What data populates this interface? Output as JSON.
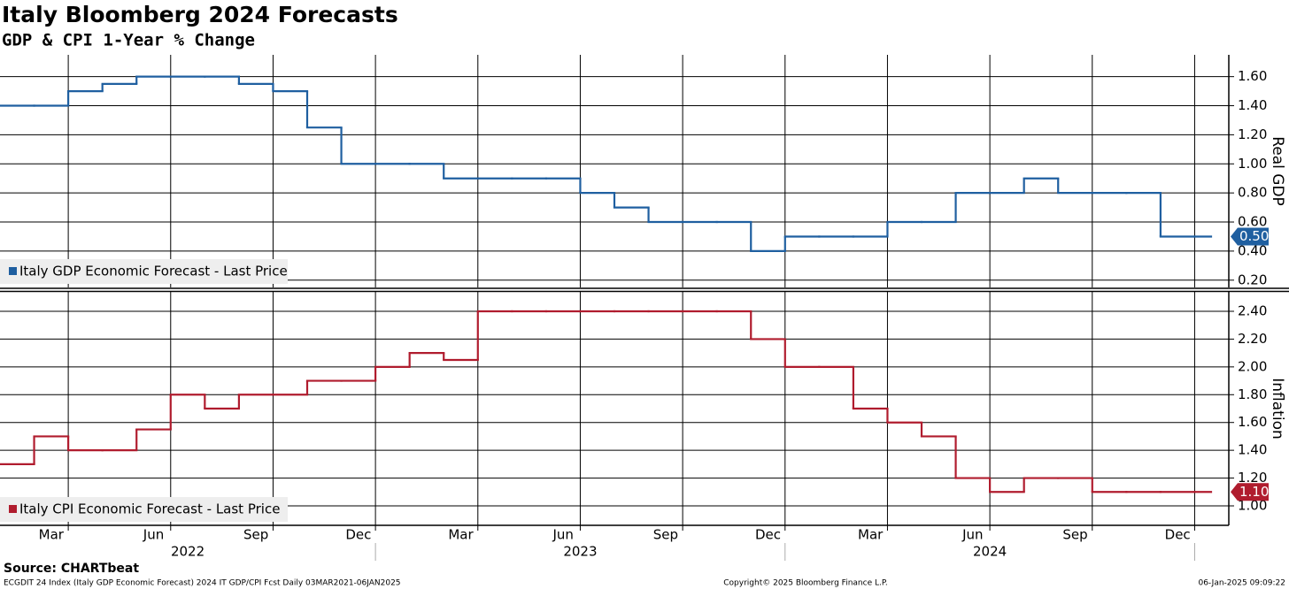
{
  "title": "Italy Bloomberg 2024 Forecasts",
  "subtitle": "GDP & CPI 1-Year % Change",
  "source": "Source: CHARTbeat",
  "footer": {
    "left": "ECGDIT 24 Index (Italy GDP Economic Forecast) 2024 IT GDP/CPI Fcst  Daily 03MAR2021-06JAN2025",
    "center": "Copyright© 2025 Bloomberg Finance L.P.",
    "right": "06-Jan-2025 09:09:22"
  },
  "x_axis": {
    "xlim": [
      "2022-02",
      "2025-01"
    ],
    "xticks": [
      "2022-04",
      "2022-07",
      "2022-10",
      "2023-01",
      "2023-04",
      "2023-07",
      "2023-10",
      "2024-01",
      "2024-04",
      "2024-07",
      "2024-10",
      "2025-01"
    ],
    "months": [
      {
        "label": "Mar",
        "date": "2022-03"
      },
      {
        "label": "Jun",
        "date": "2022-06"
      },
      {
        "label": "Sep",
        "date": "2022-09"
      },
      {
        "label": "Dec",
        "date": "2022-12"
      },
      {
        "label": "Mar",
        "date": "2023-03"
      },
      {
        "label": "Jun",
        "date": "2023-06"
      },
      {
        "label": "Sep",
        "date": "2023-09"
      },
      {
        "label": "Dec",
        "date": "2023-12"
      },
      {
        "label": "Mar",
        "date": "2024-03"
      },
      {
        "label": "Jun",
        "date": "2024-06"
      },
      {
        "label": "Sep",
        "date": "2024-09"
      },
      {
        "label": "Dec",
        "date": "2024-12"
      }
    ],
    "years": [
      {
        "label": "2022",
        "date": "2022"
      },
      {
        "label": "2023",
        "date": "2023"
      },
      {
        "label": "2024",
        "date": "2024"
      }
    ]
  },
  "chart_data": [
    {
      "type": "line",
      "axis_label": "Real GDP",
      "grid": true,
      "x": [
        "2022-02",
        "2022-03",
        "2022-04",
        "2022-05",
        "2022-06",
        "2022-07",
        "2022-08",
        "2022-09",
        "2022-10",
        "2022-11",
        "2022-12",
        "2023-01",
        "2023-02",
        "2023-03",
        "2023-04",
        "2023-05",
        "2023-06",
        "2023-07",
        "2023-08",
        "2023-09",
        "2023-10",
        "2023-11",
        "2023-12",
        "2024-01",
        "2024-02",
        "2024-03",
        "2024-04",
        "2024-05",
        "2024-06",
        "2024-07",
        "2024-08",
        "2024-09",
        "2024-10",
        "2024-11",
        "2024-12",
        "2025-01"
      ],
      "series": [
        {
          "name": "Italy GDP Economic Forecast - Last Price",
          "color": "#1f5fa0",
          "last_label": "0.50",
          "values": [
            1.4,
            1.4,
            1.5,
            1.55,
            1.6,
            1.6,
            1.6,
            1.55,
            1.5,
            1.25,
            1.0,
            1.0,
            1.0,
            0.9,
            0.9,
            0.9,
            0.9,
            0.8,
            0.7,
            0.6,
            0.6,
            0.6,
            0.4,
            0.5,
            0.5,
            0.5,
            0.6,
            0.6,
            0.8,
            0.8,
            0.9,
            0.8,
            0.8,
            0.8,
            0.5,
            0.5
          ]
        }
      ],
      "ylim": [
        0.15,
        1.75
      ],
      "yticks": [
        {
          "value": 0.2,
          "label": "0.20"
        },
        {
          "value": 0.4,
          "label": "0.40"
        },
        {
          "value": 0.6,
          "label": "0.60"
        },
        {
          "value": 0.8,
          "label": "0.80"
        },
        {
          "value": 1.0,
          "label": "1.00"
        },
        {
          "value": 1.2,
          "label": "1.20"
        },
        {
          "value": 1.4,
          "label": "1.40"
        },
        {
          "value": 1.6,
          "label": "1.60"
        }
      ]
    },
    {
      "type": "line",
      "axis_label": "Inflation",
      "grid": true,
      "x": [
        "2022-02",
        "2022-03",
        "2022-04",
        "2022-05",
        "2022-06",
        "2022-07",
        "2022-08",
        "2022-09",
        "2022-10",
        "2022-11",
        "2022-12",
        "2023-01",
        "2023-02",
        "2023-03",
        "2023-04",
        "2023-05",
        "2023-06",
        "2023-07",
        "2023-08",
        "2023-09",
        "2023-10",
        "2023-11",
        "2023-12",
        "2024-01",
        "2024-02",
        "2024-03",
        "2024-04",
        "2024-05",
        "2024-06",
        "2024-07",
        "2024-08",
        "2024-09",
        "2024-10",
        "2024-11",
        "2024-12",
        "2025-01"
      ],
      "series": [
        {
          "name": "Italy CPI Economic Forecast - Last Price",
          "color": "#b01c2e",
          "last_label": "1.10",
          "values": [
            1.3,
            1.5,
            1.4,
            1.4,
            1.55,
            1.8,
            1.7,
            1.8,
            1.8,
            1.9,
            1.9,
            2.0,
            2.1,
            2.05,
            2.4,
            2.4,
            2.4,
            2.4,
            2.4,
            2.4,
            2.4,
            2.4,
            2.2,
            2.0,
            2.0,
            1.7,
            1.6,
            1.5,
            1.2,
            1.1,
            1.2,
            1.2,
            1.1,
            1.1,
            1.1,
            1.1
          ]
        }
      ],
      "ylim": [
        0.86,
        2.54
      ],
      "yticks": [
        {
          "value": 1.0,
          "label": "1.00"
        },
        {
          "value": 1.2,
          "label": "1.20"
        },
        {
          "value": 1.4,
          "label": "1.40"
        },
        {
          "value": 1.6,
          "label": "1.60"
        },
        {
          "value": 1.8,
          "label": "1.80"
        },
        {
          "value": 2.0,
          "label": "2.00"
        },
        {
          "value": 2.2,
          "label": "2.20"
        },
        {
          "value": 2.4,
          "label": "2.40"
        }
      ]
    }
  ]
}
